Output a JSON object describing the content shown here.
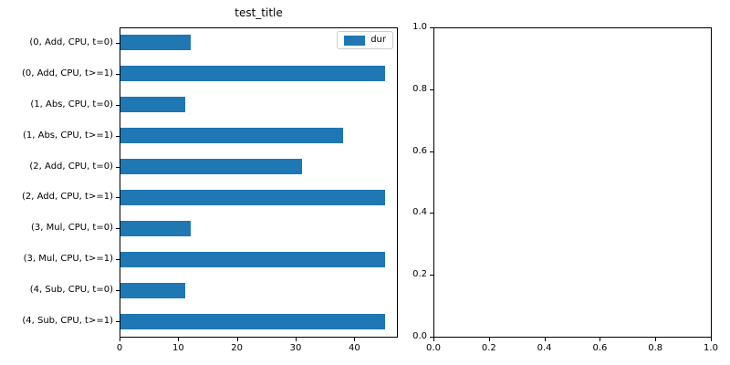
{
  "figure": {
    "background": "#ffffff"
  },
  "chart_data": [
    {
      "type": "bar",
      "orientation": "horizontal",
      "title": "test_title",
      "categories": [
        "(0, Add, CPU, t=0)",
        "(0, Add, CPU, t>=1)",
        "(1, Abs, CPU, t=0)",
        "(1, Abs, CPU, t>=1)",
        "(2, Add, CPU, t=0)",
        "(2, Add, CPU, t>=1)",
        "(3, Mul, CPU, t=0)",
        "(3, Mul, CPU, t>=1)",
        "(4, Sub, CPU, t=0)",
        "(4, Sub, CPU, t>=1)"
      ],
      "series": [
        {
          "name": "dur",
          "values": [
            12,
            45,
            11,
            38,
            31,
            45,
            12,
            45,
            11,
            45
          ]
        }
      ],
      "xlabel": "",
      "ylabel": "",
      "xlim": [
        0,
        47.25
      ],
      "x_ticks": [
        0,
        10,
        20,
        30,
        40
      ],
      "bar_color": "#1f77b4",
      "grid": false,
      "legend": {
        "position": "upper right",
        "entries": [
          "dur"
        ]
      }
    },
    {
      "type": "empty",
      "title": "",
      "xlim": [
        0,
        1
      ],
      "ylim": [
        0,
        1
      ],
      "x_tick_labels": [
        "0.0",
        "0.2",
        "0.4",
        "0.6",
        "0.8",
        "1.0"
      ],
      "y_tick_labels": [
        "0.0",
        "0.2",
        "0.4",
        "0.6",
        "0.8",
        "1.0"
      ],
      "grid": false
    }
  ]
}
